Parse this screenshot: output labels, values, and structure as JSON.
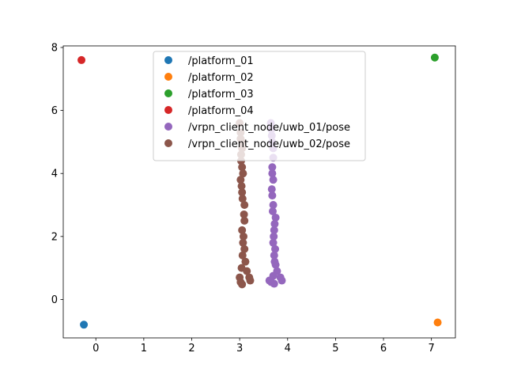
{
  "chart_data": {
    "type": "scatter",
    "title": "",
    "xlabel": "",
    "ylabel": "",
    "xlim": [
      -0.68,
      7.5
    ],
    "ylim": [
      -1.22,
      8.05
    ],
    "xticks": [
      0,
      1,
      2,
      3,
      4,
      5,
      6,
      7
    ],
    "yticks": [
      0,
      2,
      4,
      6,
      8
    ],
    "grid": false,
    "legend_position": "top-center",
    "series": [
      {
        "name": "/platform_01",
        "color": "#1f77b4",
        "points": [
          [
            -0.25,
            -0.8
          ]
        ]
      },
      {
        "name": "/platform_02",
        "color": "#ff7f0e",
        "points": [
          [
            7.13,
            -0.73
          ]
        ]
      },
      {
        "name": "/platform_03",
        "color": "#2ca02c",
        "points": [
          [
            7.07,
            7.68
          ]
        ]
      },
      {
        "name": "/platform_04",
        "color": "#d62728",
        "points": [
          [
            -0.3,
            7.6
          ]
        ]
      },
      {
        "name": "/vrpn_client_node/uwb_01/pose",
        "color": "#9467bd",
        "points": [
          [
            3.65,
            5.6
          ],
          [
            3.66,
            5.4
          ],
          [
            3.68,
            5.0
          ],
          [
            3.7,
            4.5
          ],
          [
            3.68,
            4.0
          ],
          [
            3.67,
            3.5
          ],
          [
            3.7,
            3.0
          ],
          [
            3.75,
            2.6
          ],
          [
            3.72,
            2.2
          ],
          [
            3.7,
            1.8
          ],
          [
            3.72,
            1.4
          ],
          [
            3.75,
            1.1
          ],
          [
            3.78,
            0.9
          ],
          [
            3.85,
            0.7
          ],
          [
            3.88,
            0.6
          ],
          [
            3.66,
            0.55
          ],
          [
            3.72,
            0.5
          ],
          [
            3.62,
            0.6
          ],
          [
            3.7,
            0.75
          ],
          [
            3.73,
            1.2
          ],
          [
            3.74,
            1.6
          ],
          [
            3.71,
            2.0
          ],
          [
            3.73,
            2.4
          ],
          [
            3.69,
            2.8
          ],
          [
            3.68,
            3.3
          ],
          [
            3.7,
            3.8
          ],
          [
            3.68,
            4.2
          ],
          [
            3.7,
            4.8
          ],
          [
            3.67,
            5.2
          ]
        ]
      },
      {
        "name": "/vrpn_client_node/uwb_02/pose",
        "color": "#8c564b",
        "points": [
          [
            3.0,
            5.6
          ],
          [
            3.02,
            5.3
          ],
          [
            3.05,
            5.0
          ],
          [
            3.03,
            4.6
          ],
          [
            3.05,
            4.2
          ],
          [
            3.02,
            3.8
          ],
          [
            3.05,
            3.4
          ],
          [
            3.1,
            3.0
          ],
          [
            3.1,
            2.5
          ],
          [
            3.08,
            2.0
          ],
          [
            3.1,
            1.6
          ],
          [
            3.12,
            1.2
          ],
          [
            3.15,
            0.9
          ],
          [
            3.2,
            0.7
          ],
          [
            3.22,
            0.6
          ],
          [
            3.02,
            0.55
          ],
          [
            3.05,
            0.48
          ],
          [
            3.0,
            0.7
          ],
          [
            3.04,
            1.0
          ],
          [
            3.06,
            1.4
          ],
          [
            3.07,
            1.8
          ],
          [
            3.05,
            2.2
          ],
          [
            3.09,
            2.7
          ],
          [
            3.06,
            3.2
          ],
          [
            3.04,
            3.6
          ],
          [
            3.07,
            4.0
          ],
          [
            3.03,
            4.4
          ],
          [
            3.05,
            4.8
          ],
          [
            3.02,
            5.1
          ]
        ]
      }
    ]
  }
}
